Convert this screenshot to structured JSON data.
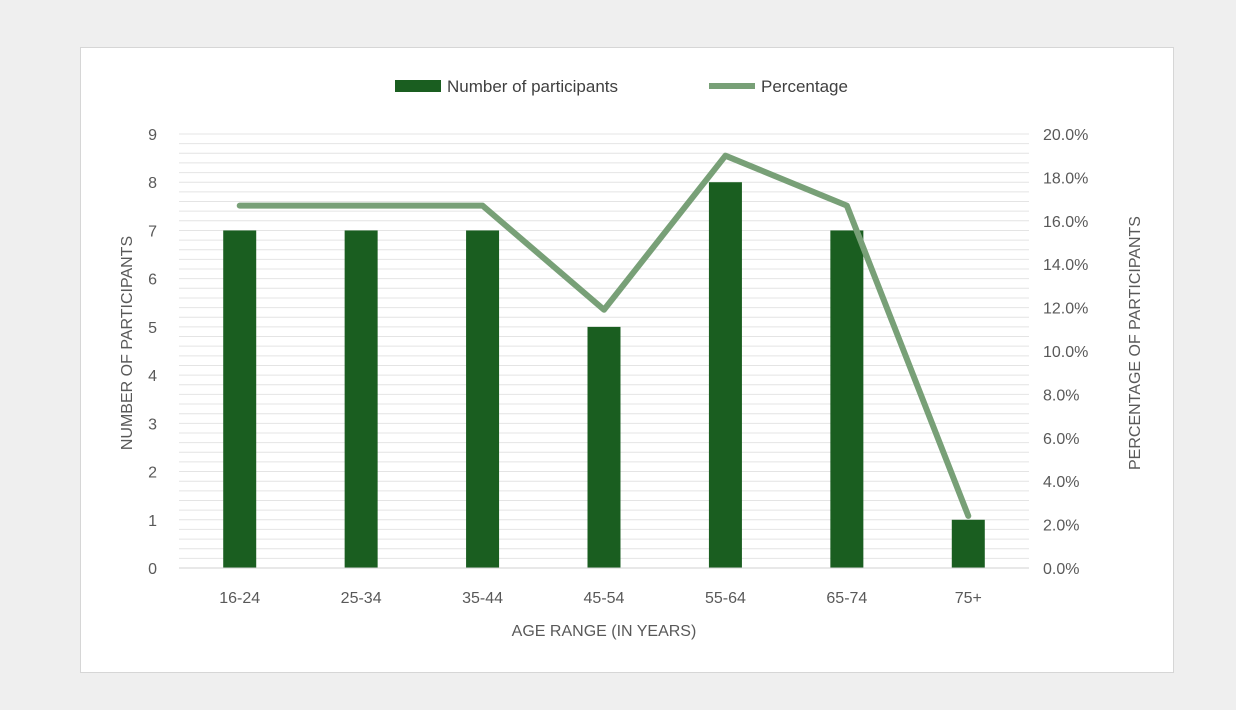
{
  "chart_data": {
    "type": "bar",
    "title": "",
    "categories": [
      "16-24",
      "25-34",
      "35-44",
      "45-54",
      "55-64",
      "65-74",
      "75+"
    ],
    "series": [
      {
        "name": "Number of participants",
        "type": "bar",
        "axis": "left",
        "color": "#1a5e20",
        "values": [
          7,
          7,
          7,
          5,
          8,
          7,
          1
        ]
      },
      {
        "name": "Percentage",
        "type": "line",
        "axis": "right",
        "color": "#78a077",
        "values": [
          16.7,
          16.7,
          16.7,
          11.9,
          19.0,
          16.7,
          2.4
        ]
      }
    ],
    "xlabel": "AGE RANGE (IN YEARS)",
    "ylabel": "NUMBER OF PARTICIPANTS",
    "y2label": "PERCENTAGE OF PARTICIPANTS",
    "ylim": [
      0,
      9
    ],
    "y2lim": [
      0,
      20
    ],
    "yticks": [
      "0",
      "1",
      "2",
      "3",
      "4",
      "5",
      "6",
      "7",
      "8",
      "9"
    ],
    "y2ticks": [
      "0.0%",
      "2.0%",
      "4.0%",
      "6.0%",
      "8.0%",
      "10.0%",
      "12.0%",
      "14.0%",
      "16.0%",
      "18.0%",
      "20.0%"
    ],
    "grid": true,
    "legend_position": "top"
  }
}
